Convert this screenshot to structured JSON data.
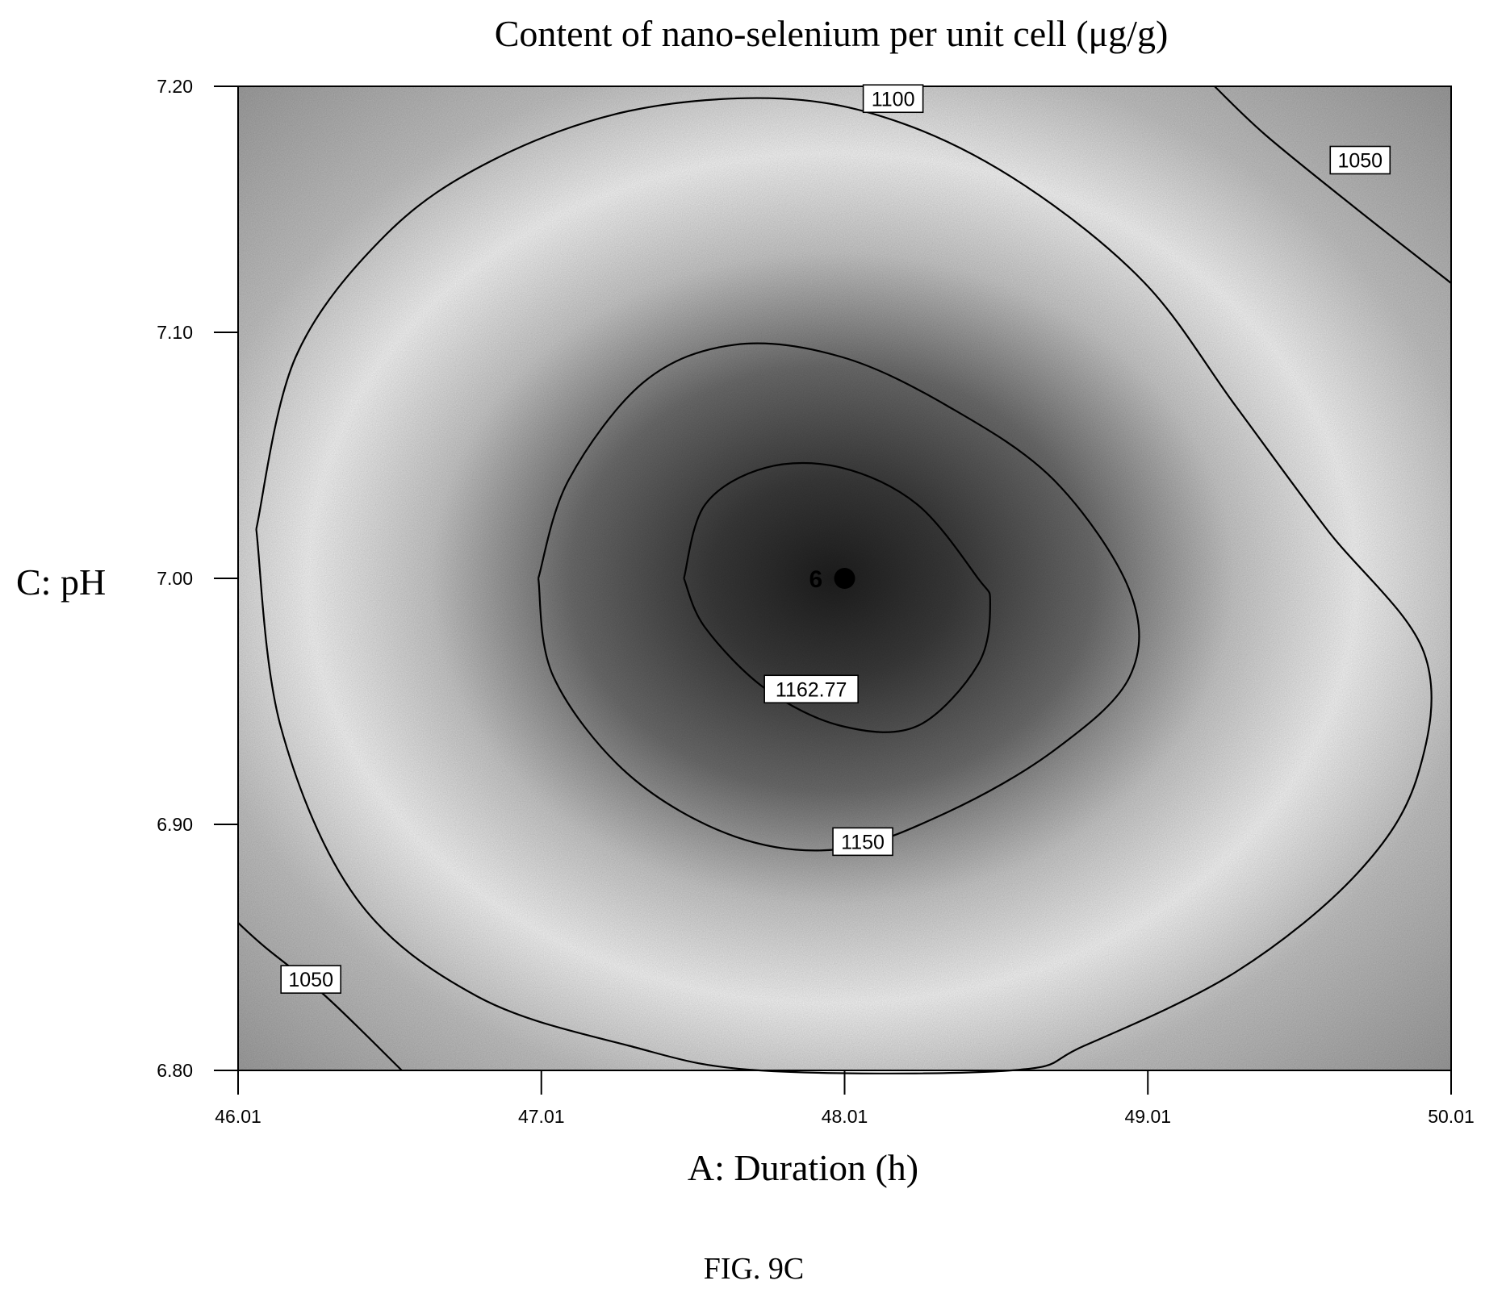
{
  "chart_data": {
    "type": "contour",
    "title": "Content of nano-selenium per unit cell (μg/g)",
    "xlabel": "A: Duration (h)",
    "ylabel": "C: pH",
    "xlim": [
      46.01,
      50.01
    ],
    "ylim": [
      6.8,
      7.2
    ],
    "xticks": [
      "46.01",
      "47.01",
      "48.01",
      "49.01",
      "50.01"
    ],
    "yticks": [
      "6.80",
      "6.90",
      "7.00",
      "7.10",
      "7.20"
    ],
    "grid": false,
    "colors": {
      "peak": "#1e1e1e",
      "low": "#9a9a9a",
      "mid": "#f5f5f5",
      "lines": "#000000"
    },
    "contours": [
      {
        "level": "1162.77",
        "path": [
          [
            47.48,
            7.0
          ],
          [
            47.55,
            7.03
          ],
          [
            47.75,
            7.045
          ],
          [
            48.0,
            7.045
          ],
          [
            48.25,
            7.03
          ],
          [
            48.45,
            7.0
          ],
          [
            48.49,
            6.99
          ],
          [
            48.45,
            6.965
          ],
          [
            48.25,
            6.94
          ],
          [
            48.0,
            6.94
          ],
          [
            47.75,
            6.955
          ],
          [
            47.55,
            6.98
          ],
          [
            47.48,
            7.0
          ]
        ],
        "label_at": [
          47.9,
          6.955
        ]
      },
      {
        "level": "1150",
        "path": [
          [
            47.0,
            7.0
          ],
          [
            47.1,
            7.04
          ],
          [
            47.35,
            7.08
          ],
          [
            47.65,
            7.095
          ],
          [
            48.0,
            7.09
          ],
          [
            48.35,
            7.07
          ],
          [
            48.7,
            7.04
          ],
          [
            48.95,
            6.995
          ],
          [
            48.95,
            6.96
          ],
          [
            48.7,
            6.93
          ],
          [
            48.35,
            6.905
          ],
          [
            48.0,
            6.89
          ],
          [
            47.65,
            6.895
          ],
          [
            47.3,
            6.92
          ],
          [
            47.05,
            6.96
          ],
          [
            47.0,
            7.0
          ]
        ],
        "label_at": [
          48.07,
          6.893
        ]
      },
      {
        "level": "1100",
        "path": [
          [
            46.07,
            7.02
          ],
          [
            46.2,
            7.09
          ],
          [
            46.5,
            7.14
          ],
          [
            46.85,
            7.17
          ],
          [
            47.3,
            7.19
          ],
          [
            47.8,
            7.195
          ],
          [
            48.2,
            7.185
          ],
          [
            48.6,
            7.16
          ],
          [
            49.0,
            7.12
          ],
          [
            49.3,
            7.07
          ],
          [
            49.6,
            7.02
          ],
          [
            49.92,
            6.97
          ],
          [
            49.9,
            6.92
          ],
          [
            49.7,
            6.88
          ],
          [
            49.3,
            6.84
          ],
          [
            48.8,
            6.81
          ],
          [
            48.56,
            6.8
          ],
          [
            47.73,
            6.8
          ],
          [
            47.3,
            6.81
          ],
          [
            46.8,
            6.83
          ],
          [
            46.4,
            6.87
          ],
          [
            46.15,
            6.94
          ],
          [
            46.07,
            7.02
          ]
        ],
        "label_at": [
          48.17,
          7.195
        ]
      },
      {
        "level": "1050",
        "path": [
          [
            49.23,
            7.2
          ],
          [
            49.4,
            7.18
          ],
          [
            49.7,
            7.15
          ],
          [
            50.01,
            7.12
          ]
        ],
        "label_at": [
          49.71,
          7.17
        ]
      },
      {
        "level": "1050",
        "path": [
          [
            46.01,
            6.86
          ],
          [
            46.1,
            6.85
          ],
          [
            46.3,
            6.83
          ],
          [
            46.55,
            6.8
          ]
        ],
        "label_at": [
          46.25,
          6.837
        ]
      }
    ],
    "design_point": {
      "label": "6",
      "x": 48.01,
      "y": 7.0
    }
  },
  "caption": "FIG. 9C"
}
